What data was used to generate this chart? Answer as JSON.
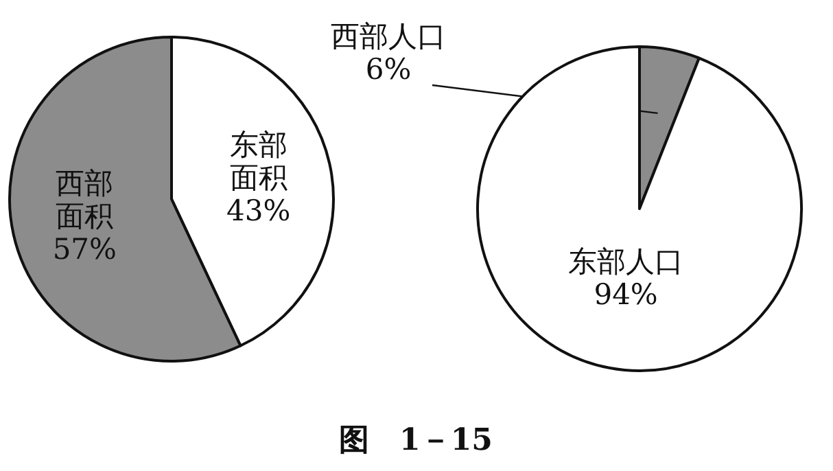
{
  "chart_data": [
    {
      "type": "pie",
      "categories": [
        "东部面积",
        "西部面积"
      ],
      "values": [
        43,
        57
      ],
      "value_labels": [
        "43%",
        "57%"
      ],
      "colors": [
        "#ffffff",
        "#8c8c8c"
      ],
      "annotations": [
        "图　1－15"
      ]
    },
    {
      "type": "pie",
      "categories": [
        "西部人口",
        "东部人口"
      ],
      "values": [
        6,
        94
      ],
      "value_labels": [
        "6%",
        "94%"
      ],
      "colors": [
        "#8c8c8c",
        "#ffffff"
      ]
    }
  ]
}
